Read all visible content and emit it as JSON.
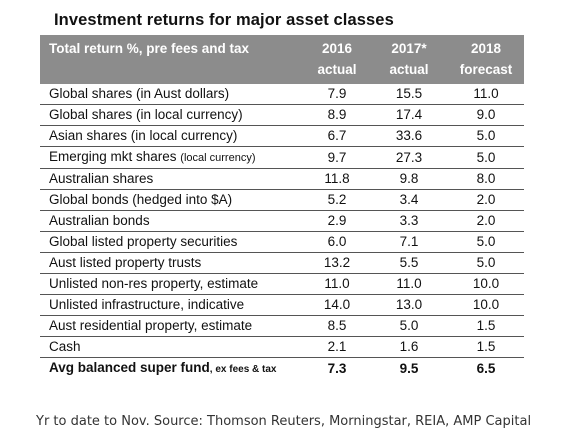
{
  "title": "Investment returns for major asset classes",
  "table": {
    "header": {
      "label": "Total return %, pre fees and tax",
      "col1": [
        "2016",
        "actual"
      ],
      "col2": [
        "2017*",
        "actual"
      ],
      "col3": [
        "2018",
        "forecast"
      ]
    },
    "rows": [
      {
        "name": "Global shares (in Aust dollars)",
        "note": "",
        "v1": "7.9",
        "v2": "15.5",
        "v3": "11.0"
      },
      {
        "name": "Global shares (in local currency)",
        "note": "",
        "v1": "8.9",
        "v2": "17.4",
        "v3": "9.0"
      },
      {
        "name": "Asian shares (in local currency)",
        "note": "",
        "v1": "6.7",
        "v2": "33.6",
        "v3": "5.0"
      },
      {
        "name": "Emerging mkt shares ",
        "note": "(local currency)",
        "v1": "9.7",
        "v2": "27.3",
        "v3": "5.0"
      },
      {
        "name": "Australian shares",
        "note": "",
        "v1": "11.8",
        "v2": "9.8",
        "v3": "8.0"
      },
      {
        "name": "Global bonds (hedged into $A)",
        "note": "",
        "v1": "5.2",
        "v2": "3.4",
        "v3": "2.0"
      },
      {
        "name": "Australian bonds",
        "note": "",
        "v1": "2.9",
        "v2": "3.3",
        "v3": "2.0"
      },
      {
        "name": "Global listed property securities",
        "note": "",
        "v1": "6.0",
        "v2": "7.1",
        "v3": "5.0"
      },
      {
        "name": "Aust listed property trusts",
        "note": "",
        "v1": "13.2",
        "v2": "5.5",
        "v3": "5.0"
      },
      {
        "name": "Unlisted non-res property, estimate",
        "note": "",
        "v1": "11.0",
        "v2": "11.0",
        "v3": "10.0"
      },
      {
        "name": "Unlisted infrastructure, indicative",
        "note": "",
        "v1": "14.0",
        "v2": "13.0",
        "v3": "10.0"
      },
      {
        "name": "Aust residential property, estimate",
        "note": "",
        "v1": "8.5",
        "v2": "5.0",
        "v3": "1.5"
      },
      {
        "name": "Cash",
        "note": "",
        "v1": "2.1",
        "v2": "1.6",
        "v3": "1.5"
      }
    ],
    "total": {
      "name": "Avg balanced super fund",
      "note": ", ex fees & tax",
      "v1": "7.3",
      "v2": "9.5",
      "v3": "6.5"
    }
  },
  "footnote": "Yr to date to Nov. Source: Thomson Reuters, Morningstar, REIA, AMP Capital"
}
